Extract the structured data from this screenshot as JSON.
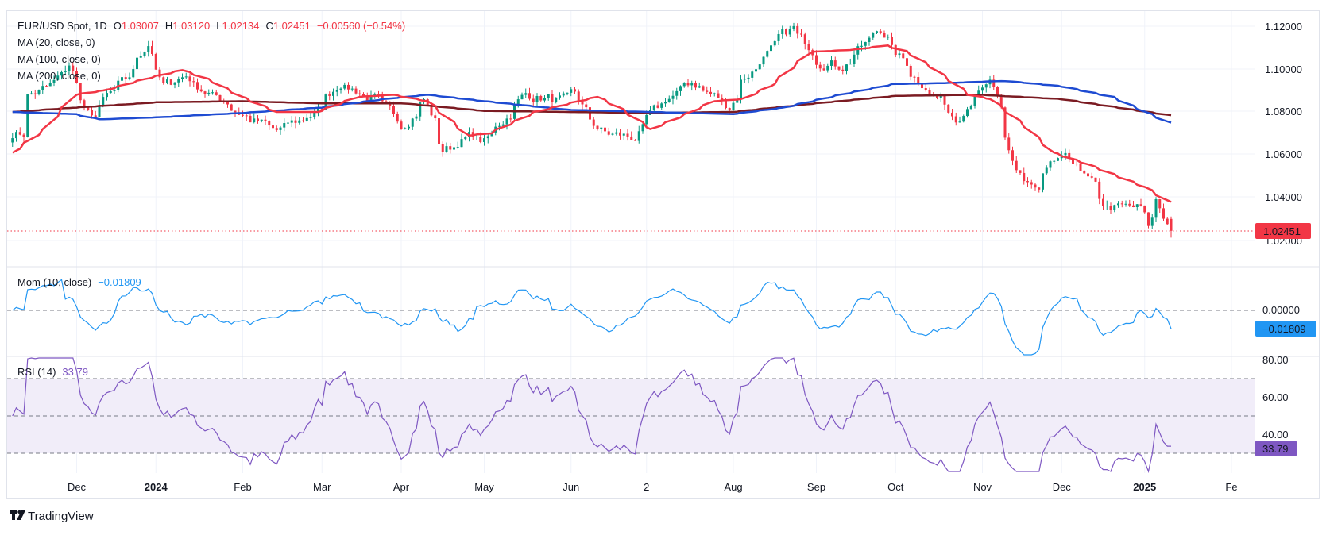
{
  "header": {
    "symbol": "EUR/USD Spot, 1D",
    "o_label": "O",
    "o": "1.03007",
    "h_label": "H",
    "h": "1.03120",
    "l_label": "L",
    "l": "1.02134",
    "c_label": "C",
    "c": "1.02451",
    "change": "−0.00560 (−0.54%)"
  },
  "indicators": {
    "ma20": "MA (20, close, 0)",
    "ma100": "MA (100, close, 0)",
    "ma200": "MA (200, close, 0)"
  },
  "mom": {
    "label": "Mom (10, close)",
    "value": "−0.01809",
    "axis": [
      "0.00000"
    ]
  },
  "rsi": {
    "label": "RSI (14)",
    "value": "33.79",
    "axis": [
      "80.00",
      "60.00",
      "40.00"
    ]
  },
  "price_axis": [
    "1.12000",
    "1.10000",
    "1.08000",
    "1.06000",
    "1.04000",
    "1.02000"
  ],
  "last_price": "1.02451",
  "time_axis": [
    {
      "label": "Dec",
      "date": "2023-12-01",
      "bold": false
    },
    {
      "label": "2024",
      "date": "2024-01-01",
      "bold": true
    },
    {
      "label": "Feb",
      "date": "2024-02-01",
      "bold": false
    },
    {
      "label": "Mar",
      "date": "2024-03-01",
      "bold": false
    },
    {
      "label": "Apr",
      "date": "2024-04-01",
      "bold": false
    },
    {
      "label": "May",
      "date": "2024-05-01",
      "bold": false
    },
    {
      "label": "Jun",
      "date": "2024-06-03",
      "bold": false
    },
    {
      "label": "2",
      "date": "2024-07-01",
      "bold": false
    },
    {
      "label": "Aug",
      "date": "2024-08-01",
      "bold": false
    },
    {
      "label": "Sep",
      "date": "2024-09-02",
      "bold": false
    },
    {
      "label": "Oct",
      "date": "2024-10-01",
      "bold": false
    },
    {
      "label": "Nov",
      "date": "2024-11-01",
      "bold": false
    },
    {
      "label": "Dec",
      "date": "2024-12-02",
      "bold": false
    },
    {
      "label": "2025",
      "date": "2025-01-01",
      "bold": true
    },
    {
      "label": "Fe",
      "date": "2025-02-03",
      "bold": false
    }
  ],
  "brand": "TradingView",
  "colors": {
    "up": "#089981",
    "down": "#f23645",
    "ma20": "#f23645",
    "ma100": "#1e4bd2",
    "ma200": "#7b1b22",
    "mom": "#2196f3",
    "rsi": "#7e57c2",
    "rsi_band": "#f1edf9",
    "grid": "#f0f3fa"
  },
  "chart_data": {
    "type": "candlestick",
    "first_date": "2023-11-08",
    "last_date": "2025-01-10",
    "ylim": [
      1.015,
      1.125
    ],
    "last_bar": {
      "o": 1.03007,
      "h": 1.0312,
      "l": 1.02134,
      "c": 1.02451
    },
    "close_path": [
      [
        "2023-11-08",
        1.07
      ],
      [
        "2023-11-13",
        1.07
      ],
      [
        "2023-11-14",
        1.088
      ],
      [
        "2023-11-21",
        1.091
      ],
      [
        "2023-11-29",
        1.101
      ],
      [
        "2023-12-07",
        1.076
      ],
      [
        "2023-12-13",
        1.087
      ],
      [
        "2023-12-20",
        1.094
      ],
      [
        "2023-12-28",
        1.112
      ],
      [
        "2024-01-03",
        1.092
      ],
      [
        "2024-01-11",
        1.097
      ],
      [
        "2024-01-19",
        1.089
      ],
      [
        "2024-01-26",
        1.085
      ],
      [
        "2024-02-02",
        1.078
      ],
      [
        "2024-02-14",
        1.071
      ],
      [
        "2024-02-29",
        1.08
      ],
      [
        "2024-03-08",
        1.094
      ],
      [
        "2024-03-19",
        1.087
      ],
      [
        "2024-03-21",
        1.086
      ],
      [
        "2024-04-01",
        1.074
      ],
      [
        "2024-04-09",
        1.086
      ],
      [
        "2024-04-16",
        1.062
      ],
      [
        "2024-04-26",
        1.069
      ],
      [
        "2024-05-01",
        1.066
      ],
      [
        "2024-05-16",
        1.088
      ],
      [
        "2024-05-31",
        1.085
      ],
      [
        "2024-06-04",
        1.088
      ],
      [
        "2024-06-07",
        1.08
      ],
      [
        "2024-06-14",
        1.07
      ],
      [
        "2024-06-26",
        1.068
      ],
      [
        "2024-07-05",
        1.083
      ],
      [
        "2024-07-17",
        1.094
      ],
      [
        "2024-07-31",
        1.0825
      ],
      [
        "2024-08-05",
        1.095
      ],
      [
        "2024-08-23",
        1.119
      ],
      [
        "2024-09-03",
        1.104
      ],
      [
        "2024-09-11",
        1.1015
      ],
      [
        "2024-09-25",
        1.119
      ],
      [
        "2024-10-01",
        1.107
      ],
      [
        "2024-10-10",
        1.094
      ],
      [
        "2024-10-23",
        1.078
      ],
      [
        "2024-10-31",
        1.0885
      ],
      [
        "2024-11-05",
        1.093
      ],
      [
        "2024-11-14",
        1.053
      ],
      [
        "2024-11-22",
        1.042
      ],
      [
        "2024-11-29",
        1.0575
      ],
      [
        "2024-12-06",
        1.057
      ],
      [
        "2024-12-18",
        1.0355
      ],
      [
        "2024-12-31",
        1.035
      ],
      [
        "2025-01-02",
        1.0265
      ],
      [
        "2025-01-06",
        1.039
      ],
      [
        "2025-01-10",
        1.02451
      ]
    ],
    "ma20": [
      [
        "2023-11-08",
        1.061
      ],
      [
        "2023-11-20",
        1.072
      ],
      [
        "2023-12-01",
        1.088
      ],
      [
        "2023-12-12",
        1.09
      ],
      [
        "2023-12-29",
        1.096
      ],
      [
        "2024-01-10",
        1.0995
      ],
      [
        "2024-01-20",
        1.095
      ],
      [
        "2024-02-01",
        1.087
      ],
      [
        "2024-02-14",
        1.08
      ],
      [
        "2024-02-29",
        1.08
      ],
      [
        "2024-03-15",
        1.087
      ],
      [
        "2024-03-28",
        1.088
      ],
      [
        "2024-04-10",
        1.085
      ],
      [
        "2024-04-25",
        1.069
      ],
      [
        "2024-05-03",
        1.07
      ],
      [
        "2024-05-20",
        1.08
      ],
      [
        "2024-06-05",
        1.085
      ],
      [
        "2024-06-12",
        1.087
      ],
      [
        "2024-06-20",
        1.082
      ],
      [
        "2024-07-02",
        1.072
      ],
      [
        "2024-07-15",
        1.079
      ],
      [
        "2024-07-25",
        1.085
      ],
      [
        "2024-08-05",
        1.086
      ],
      [
        "2024-08-15",
        1.092
      ],
      [
        "2024-08-30",
        1.108
      ],
      [
        "2024-09-15",
        1.109
      ],
      [
        "2024-09-27",
        1.111
      ],
      [
        "2024-10-05",
        1.108
      ],
      [
        "2024-10-15",
        1.1
      ],
      [
        "2024-10-28",
        1.088
      ],
      [
        "2024-11-05",
        1.086
      ],
      [
        "2024-11-18",
        1.073
      ],
      [
        "2024-11-28",
        1.061
      ],
      [
        "2024-12-10",
        1.056
      ],
      [
        "2024-12-20",
        1.051
      ],
      [
        "2025-01-01",
        1.045
      ],
      [
        "2025-01-10",
        1.038
      ]
    ],
    "ma100": [
      [
        "2023-11-08",
        1.08
      ],
      [
        "2023-12-01",
        1.079
      ],
      [
        "2023-12-10",
        1.0765
      ],
      [
        "2024-01-01",
        1.0775
      ],
      [
        "2024-02-01",
        1.0795
      ],
      [
        "2024-03-01",
        1.082
      ],
      [
        "2024-03-25",
        1.086
      ],
      [
        "2024-04-10",
        1.088
      ],
      [
        "2024-05-01",
        1.085
      ],
      [
        "2024-06-01",
        1.081
      ],
      [
        "2024-07-01",
        1.08
      ],
      [
        "2024-08-01",
        1.079
      ],
      [
        "2024-08-20",
        1.082
      ],
      [
        "2024-09-10",
        1.088
      ],
      [
        "2024-09-30",
        1.093
      ],
      [
        "2024-10-20",
        1.0935
      ],
      [
        "2024-11-10",
        1.0945
      ],
      [
        "2024-12-01",
        1.092
      ],
      [
        "2024-12-20",
        1.087
      ],
      [
        "2025-01-10",
        1.075
      ]
    ],
    "ma200": [
      [
        "2023-11-08",
        1.08
      ],
      [
        "2023-12-01",
        1.082
      ],
      [
        "2024-01-01",
        1.0845
      ],
      [
        "2024-02-01",
        1.085
      ],
      [
        "2024-03-01",
        1.084
      ],
      [
        "2024-04-01",
        1.084
      ],
      [
        "2024-05-01",
        1.0805
      ],
      [
        "2024-06-01",
        1.08
      ],
      [
        "2024-07-01",
        1.0795
      ],
      [
        "2024-08-01",
        1.08
      ],
      [
        "2024-09-01",
        1.084
      ],
      [
        "2024-10-01",
        1.0875
      ],
      [
        "2024-11-01",
        1.088
      ],
      [
        "2024-12-01",
        1.086
      ],
      [
        "2025-01-10",
        1.0785
      ]
    ],
    "rsi_levels": [
      70,
      50,
      30
    ],
    "mom_last": -0.01809,
    "rsi_last": 33.79
  }
}
